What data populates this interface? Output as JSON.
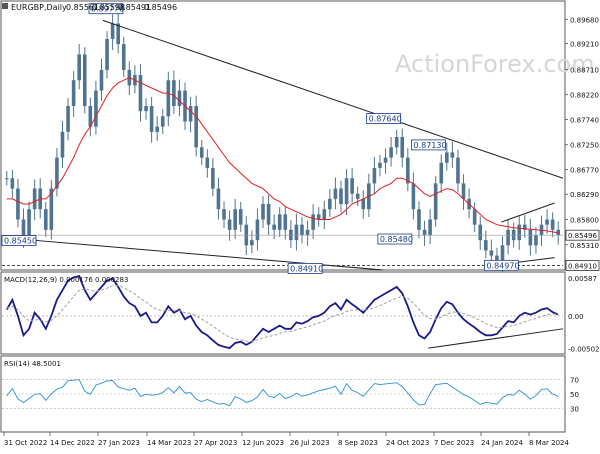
{
  "watermark": "ActionForex.com",
  "colors": {
    "price": "#4f7391",
    "ma": "#e02020",
    "macd": "#1a1a8c",
    "signal": "#a0a0a0",
    "rsi": "#2a8fd8",
    "trend": "#202020"
  },
  "chart_data": [
    {
      "type": "candlestick",
      "title": "EURGBP,Daily",
      "ohlc_header": [
        "0.85561",
        "0.85598",
        "0.85491",
        "0.85496"
      ],
      "ylim": [
        0.8486,
        0.899
      ],
      "yticks": [
        0.8968,
        0.8921,
        0.8871,
        0.8822,
        0.8774,
        0.8725,
        0.8677,
        0.8629,
        0.858,
        0.8531
      ],
      "ytick_labels": [
        "0.89680",
        "0.89210",
        "0.88710",
        "0.88220",
        "0.87740",
        "0.87250",
        "0.86770",
        "0.86290",
        "0.85800",
        "0.85310"
      ],
      "current_price": "0.85496",
      "support_level": "0.84910",
      "annotations": [
        {
          "label": "0.89770",
          "x": 0.155,
          "value": 0.8977
        },
        {
          "label": "0.87640",
          "x": 0.65,
          "value": 0.8764
        },
        {
          "label": "0.87130",
          "x": 0.73,
          "value": 0.8713
        },
        {
          "label": "0.85480",
          "x": 0.67,
          "value": 0.8548
        },
        {
          "label": "0.84970",
          "x": 0.86,
          "value": 0.8497
        },
        {
          "label": "0.84910",
          "x": 0.51,
          "value": 0.8491
        },
        {
          "label": "0.85450",
          "x": 0.0,
          "value": 0.8545
        }
      ],
      "trendlines": [
        {
          "x": [
            0.18,
            1.0
          ],
          "y": [
            0.8966,
            0.866
          ]
        },
        {
          "x": [
            0.0,
            0.68
          ],
          "y": [
            0.8545,
            0.8482
          ]
        },
        {
          "x": [
            0.89,
            0.985
          ],
          "y": [
            0.8493,
            0.8506
          ]
        },
        {
          "x": [
            0.89,
            0.985
          ],
          "y": [
            0.8575,
            0.8612
          ]
        }
      ],
      "close_series": [
        0.866,
        0.864,
        0.858,
        0.8545,
        0.86,
        0.864,
        0.86,
        0.856,
        0.864,
        0.87,
        0.875,
        0.88,
        0.885,
        0.89,
        0.88,
        0.876,
        0.883,
        0.887,
        0.893,
        0.896,
        0.892,
        0.887,
        0.884,
        0.886,
        0.879,
        0.88,
        0.875,
        0.876,
        0.878,
        0.885,
        0.88,
        0.883,
        0.877,
        0.88,
        0.872,
        0.87,
        0.868,
        0.864,
        0.86,
        0.858,
        0.856,
        0.86,
        0.857,
        0.853,
        0.854,
        0.858,
        0.861,
        0.857,
        0.856,
        0.859,
        0.856,
        0.854,
        0.857,
        0.855,
        0.856,
        0.859,
        0.858,
        0.86,
        0.862,
        0.864,
        0.861,
        0.866,
        0.863,
        0.862,
        0.86,
        0.865,
        0.868,
        0.869,
        0.87,
        0.872,
        0.874,
        0.87,
        0.865,
        0.86,
        0.856,
        0.855,
        0.858,
        0.865,
        0.869,
        0.871,
        0.87,
        0.865,
        0.862,
        0.86,
        0.857,
        0.854,
        0.852,
        0.851,
        0.85,
        0.853,
        0.856,
        0.854,
        0.857,
        0.856,
        0.853,
        0.855,
        0.857,
        0.858,
        0.856,
        0.855
      ],
      "ma_series": [
        0.862,
        0.862,
        0.8615,
        0.861,
        0.861,
        0.8615,
        0.862,
        0.862,
        0.863,
        0.8645,
        0.866,
        0.868,
        0.87,
        0.8725,
        0.8745,
        0.876,
        0.878,
        0.88,
        0.882,
        0.8835,
        0.8845,
        0.885,
        0.8855,
        0.885,
        0.8845,
        0.884,
        0.8835,
        0.883,
        0.8825,
        0.8825,
        0.882,
        0.881,
        0.88,
        0.879,
        0.878,
        0.8765,
        0.875,
        0.8735,
        0.872,
        0.8705,
        0.869,
        0.868,
        0.867,
        0.866,
        0.865,
        0.8645,
        0.864,
        0.863,
        0.862,
        0.8615,
        0.8605,
        0.86,
        0.8595,
        0.859,
        0.8585,
        0.8582,
        0.858,
        0.858,
        0.858,
        0.8585,
        0.859,
        0.86,
        0.861,
        0.8615,
        0.862,
        0.8625,
        0.863,
        0.864,
        0.8645,
        0.865,
        0.866,
        0.866,
        0.8655,
        0.865,
        0.864,
        0.863,
        0.8625,
        0.863,
        0.8635,
        0.864,
        0.8638,
        0.863,
        0.862,
        0.861,
        0.86,
        0.859,
        0.858,
        0.8575,
        0.857,
        0.8568,
        0.8566,
        0.8564,
        0.8563,
        0.8562,
        0.8561,
        0.856,
        0.8559,
        0.8558,
        0.8556,
        0.8554
      ]
    },
    {
      "type": "line",
      "title": "MACD(12,26,9) 0.000176 0.000283",
      "ylim": [
        -0.0056,
        0.0062
      ],
      "ytick_labels": [
        "0.00587",
        "0.00",
        "-0.005021"
      ],
      "yticks": [
        0.00587,
        0.0,
        -0.005021
      ],
      "series": [
        {
          "values": [
            0.001,
            0.0025,
            0.0,
            -0.003,
            -0.002,
            0.0005,
            -0.0005,
            -0.002,
            0.0,
            0.0025,
            0.004,
            0.0055,
            0.006,
            0.0062,
            0.004,
            0.0025,
            0.0035,
            0.0045,
            0.0055,
            0.0058,
            0.0045,
            0.003,
            0.002,
            0.0015,
            0.0,
            0.0005,
            -0.001,
            -0.001,
            0.0,
            0.0015,
            0.0005,
            0.001,
            -0.0005,
            0.0,
            -0.0015,
            -0.0025,
            -0.003,
            -0.0038,
            -0.0045,
            -0.0048,
            -0.005,
            -0.0042,
            -0.004,
            -0.0045,
            -0.004,
            -0.003,
            -0.002,
            -0.0025,
            -0.002,
            -0.0015,
            -0.002,
            -0.002,
            -0.001,
            -0.0012,
            -0.0008,
            -0.0002,
            0.0,
            0.0005,
            0.0015,
            0.002,
            0.001,
            0.0025,
            0.0018,
            0.0012,
            0.0005,
            0.0015,
            0.0025,
            0.003,
            0.0035,
            0.004,
            0.0045,
            0.0035,
            0.0015,
            -0.001,
            -0.003,
            -0.0035,
            -0.0025,
            -0.0005,
            0.0012,
            0.0022,
            0.0018,
            0.0005,
            -0.0005,
            -0.0012,
            -0.0018,
            -0.0025,
            -0.003,
            -0.003,
            -0.0028,
            -0.0018,
            -0.0008,
            -0.001,
            0.0,
            0.0005,
            0.0002,
            0.0005,
            0.001,
            0.0012,
            0.0006,
            0.0002
          ]
        },
        {
          "values": [
            0.0012,
            0.0015,
            0.001,
            0.0,
            -0.0008,
            -0.0006,
            -0.0006,
            -0.0009,
            -0.0007,
            0.0,
            0.001,
            0.002,
            0.003,
            0.004,
            0.0042,
            0.004,
            0.0038,
            0.004,
            0.0043,
            0.0047,
            0.0047,
            0.0044,
            0.0039,
            0.0034,
            0.0027,
            0.0022,
            0.0015,
            0.001,
            0.0008,
            0.0009,
            0.0008,
            0.0008,
            0.0005,
            0.0004,
            0.0,
            -0.0005,
            -0.001,
            -0.0016,
            -0.0022,
            -0.0028,
            -0.0033,
            -0.0036,
            -0.0037,
            -0.0039,
            -0.0039,
            -0.0037,
            -0.0034,
            -0.0032,
            -0.003,
            -0.0027,
            -0.0025,
            -0.0024,
            -0.0021,
            -0.0019,
            -0.0017,
            -0.0014,
            -0.0011,
            -0.0008,
            -0.0003,
            0.0001,
            0.0003,
            0.0007,
            0.0009,
            0.001,
            0.0009,
            0.001,
            0.0013,
            0.0016,
            0.002,
            0.0024,
            0.0028,
            0.003,
            0.0028,
            0.002,
            0.001,
            0.0001,
            -0.0004,
            -0.0005,
            -0.0002,
            0.0003,
            0.0006,
            0.0006,
            0.0004,
            0.0001,
            -0.0003,
            -0.0007,
            -0.0012,
            -0.0015,
            -0.0018,
            -0.0018,
            -0.0016,
            -0.0015,
            -0.0012,
            -0.0009,
            -0.0006,
            -0.0004,
            -0.0001,
            0.0002,
            0.0003,
            0.0003
          ]
        }
      ],
      "trendlines": [
        {
          "x": [
            0.76,
            1.0
          ],
          "y": [
            -0.005,
            -0.002
          ]
        }
      ]
    },
    {
      "type": "line",
      "title": "RSI(14) 48.5001",
      "ylim": [
        0,
        100
      ],
      "yticks": [
        70,
        50,
        30
      ],
      "ytick_labels": [
        "70",
        "50",
        "30"
      ],
      "series": [
        {
          "values": [
            50,
            55,
            42,
            38,
            45,
            52,
            48,
            40,
            50,
            58,
            62,
            66,
            68,
            70,
            55,
            52,
            60,
            64,
            68,
            70,
            62,
            55,
            54,
            58,
            48,
            52,
            46,
            48,
            52,
            60,
            54,
            58,
            50,
            52,
            44,
            42,
            40,
            38,
            36,
            38,
            36,
            44,
            42,
            38,
            42,
            48,
            54,
            46,
            45,
            52,
            46,
            44,
            50,
            47,
            50,
            54,
            52,
            55,
            58,
            62,
            52,
            62,
            54,
            52,
            48,
            58,
            62,
            62,
            64,
            66,
            68,
            58,
            50,
            42,
            36,
            38,
            48,
            62,
            64,
            66,
            62,
            52,
            48,
            46,
            42,
            38,
            36,
            36,
            36,
            46,
            52,
            46,
            54,
            50,
            44,
            50,
            54,
            56,
            50,
            48
          ]
        }
      ]
    }
  ],
  "xaxis": {
    "labels": [
      "31 Oct 2022",
      "14 Dec 2022",
      "27 Jan 2023",
      "14 Mar 2023",
      "27 Apr 2023",
      "12 Jun 2023",
      "26 Jul 2023",
      "8 Sep 2023",
      "24 Oct 2023",
      "7 Dec 2023",
      "24 Jan 2024",
      "8 Mar 2024"
    ]
  }
}
